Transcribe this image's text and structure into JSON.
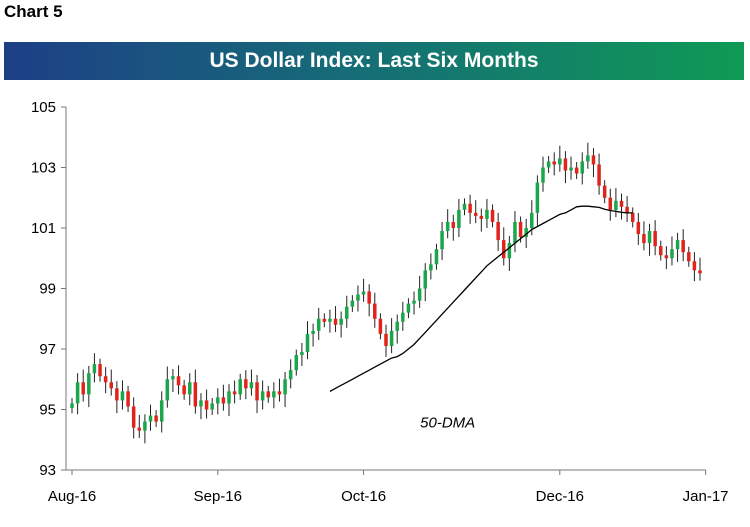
{
  "chart_label": "Chart 5",
  "chart_data": {
    "type": "candlestick",
    "title": "US Dollar Index: Last Six Months",
    "xlabel": "",
    "ylabel": "",
    "ylim": [
      93,
      105
    ],
    "y_ticks": [
      "93",
      "95",
      "97",
      "99",
      "101",
      "103",
      "105"
    ],
    "x_ticks": [
      "Aug-16",
      "Sep-16",
      "Oct-16",
      "Dec-16",
      "Jan-17"
    ],
    "x_tick_positions": [
      0,
      26,
      52,
      87,
      113
    ],
    "grid": false,
    "legend": "none",
    "colors": {
      "up": "#1aa64a",
      "down": "#e0241b",
      "ma": "#000000"
    },
    "annotations": [
      {
        "text": "50-DMA",
        "x": 67,
        "y": 94.4
      }
    ],
    "series": [
      {
        "name": "US Dollar Index",
        "type": "ohlc",
        "closes": [
          95.2,
          95.9,
          95.5,
          96.2,
          96.5,
          96.1,
          95.9,
          95.7,
          95.3,
          95.6,
          95.1,
          94.4,
          94.3,
          94.6,
          94.8,
          94.6,
          95.3,
          96.0,
          96.1,
          95.8,
          95.5,
          95.9,
          95.1,
          95.3,
          95.0,
          95.2,
          95.4,
          95.2,
          95.6,
          95.5,
          96.0,
          95.7,
          95.9,
          95.3,
          95.6,
          95.4,
          95.6,
          95.5,
          96.0,
          96.3,
          96.8,
          96.9,
          97.5,
          97.6,
          98.0,
          97.9,
          98.0,
          97.8,
          98.0,
          98.4,
          98.6,
          98.8,
          98.9,
          98.5,
          98.0,
          97.5,
          97.1,
          97.6,
          97.9,
          98.2,
          98.5,
          98.6,
          99.0,
          99.6,
          99.8,
          100.3,
          100.9,
          101.2,
          101.0,
          101.6,
          101.8,
          101.5,
          101.4,
          101.3,
          101.6,
          101.2,
          100.6,
          100.0,
          100.5,
          101.2,
          100.7,
          101.0,
          101.5,
          102.5,
          103.0,
          103.2,
          103.1,
          103.3,
          102.9,
          103.0,
          102.8,
          103.2,
          103.4,
          103.1,
          102.4,
          102.0,
          101.6,
          101.9,
          101.7,
          101.5,
          101.2,
          100.8,
          100.5,
          100.9,
          100.4,
          100.1,
          100.0,
          100.3,
          100.6,
          100.2,
          99.9,
          99.6,
          99.5
        ],
        "ma_start_index": 46,
        "ma": [
          95.6,
          95.7,
          95.8,
          95.9,
          96.0,
          96.1,
          96.2,
          96.3,
          96.4,
          96.5,
          96.6,
          96.7,
          96.75,
          96.85,
          97.0,
          97.15,
          97.35,
          97.55,
          97.75,
          97.95,
          98.15,
          98.35,
          98.55,
          98.75,
          98.95,
          99.15,
          99.35,
          99.55,
          99.75,
          99.9,
          100.05,
          100.2,
          100.35,
          100.5,
          100.65,
          100.8,
          100.95,
          101.05,
          101.15,
          101.25,
          101.35,
          101.45,
          101.5,
          101.6,
          101.7,
          101.72,
          101.72,
          101.7,
          101.68,
          101.62,
          101.58,
          101.55,
          101.52,
          101.5,
          101.5
        ]
      }
    ]
  }
}
